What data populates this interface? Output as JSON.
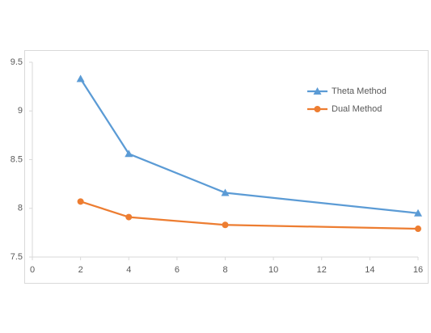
{
  "chart_data": {
    "type": "line",
    "x": [
      2,
      4,
      8,
      16
    ],
    "series": [
      {
        "name": "Theta Method",
        "color": "#5b9bd5",
        "marker": "triangle",
        "values": [
          9.33,
          8.56,
          8.16,
          7.95
        ]
      },
      {
        "name": "Dual Method",
        "color": "#ed7d31",
        "marker": "circle",
        "values": [
          8.07,
          7.91,
          7.83,
          7.79
        ]
      }
    ],
    "xlim": [
      0,
      16
    ],
    "xticks": [
      0,
      2,
      4,
      6,
      8,
      10,
      12,
      14,
      16
    ],
    "ylim": [
      7.5,
      9.5
    ],
    "yticks": [
      7.5,
      8,
      8.5,
      9,
      9.5
    ],
    "legend": "upper right"
  }
}
